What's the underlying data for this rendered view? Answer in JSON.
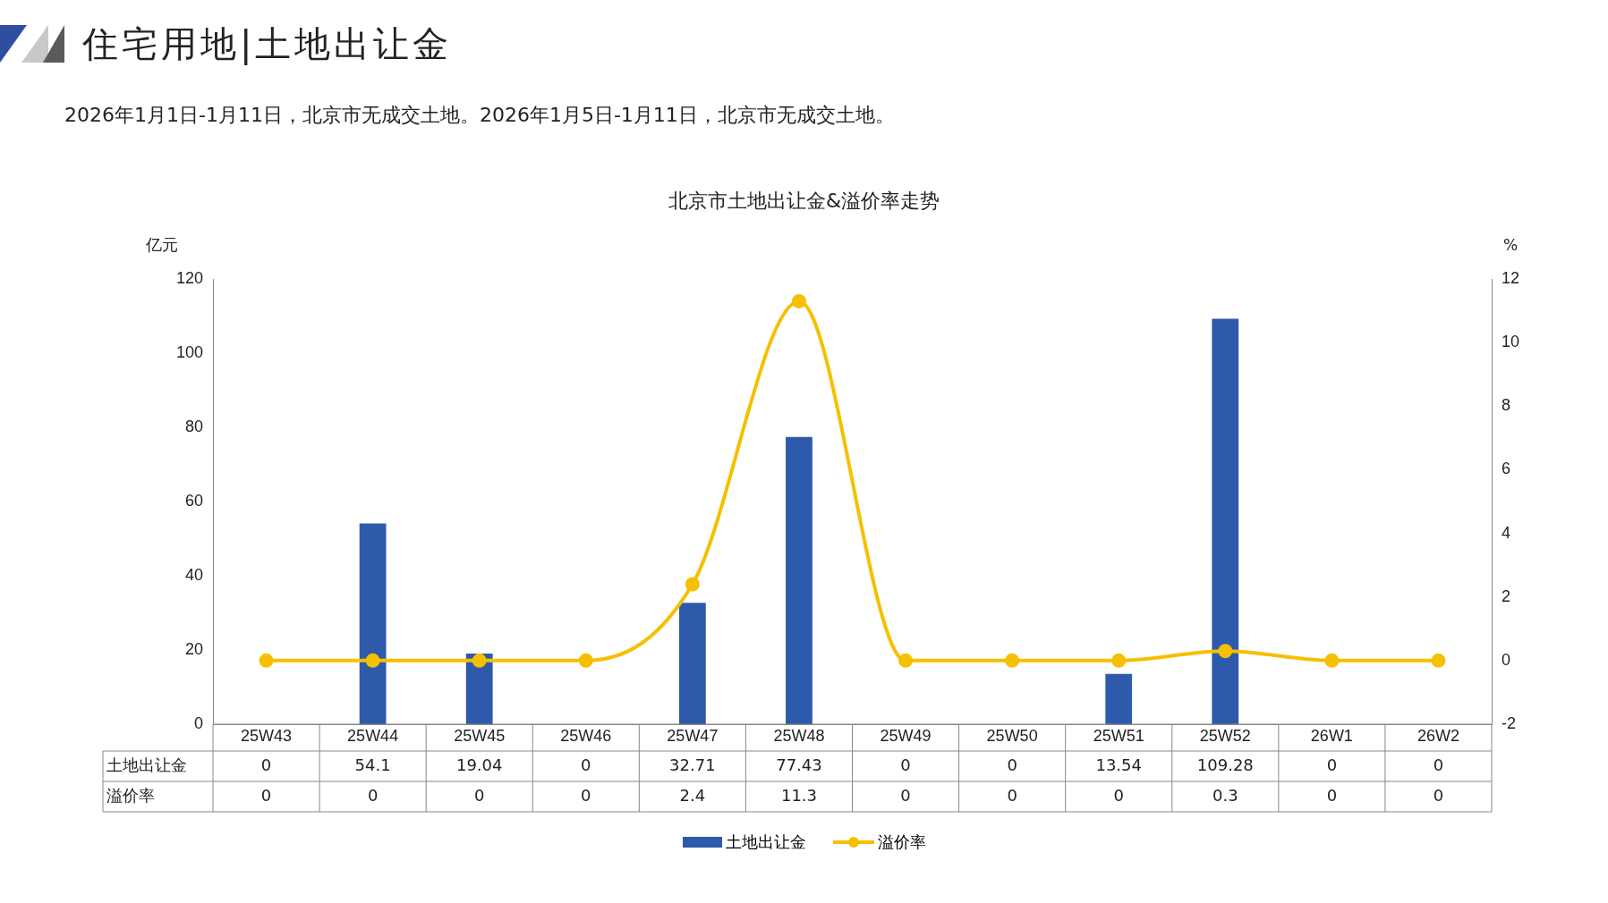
{
  "chart_data": {
    "type": "bar",
    "title": "北京市土地出让金&溢价率走势",
    "subtitle": "2026年1月1日-1月11日，北京市无成交土地。2026年1月5日-1月11日，北京市无成交土地。",
    "annotations": [
      "住宅用地|土地出让金"
    ],
    "ylabel": "亿元",
    "y2label": "%",
    "categories": [
      "25W43",
      "25W44",
      "25W45",
      "25W46",
      "25W47",
      "25W48",
      "25W49",
      "25W50",
      "25W51",
      "25W52",
      "26W1",
      "26W2"
    ],
    "series": [
      {
        "name": "土地出让金",
        "color": "#2e5aac",
        "values": [
          0,
          54.1,
          19.04,
          0,
          32.71,
          77.43,
          0,
          0,
          13.54,
          109.28,
          0,
          0
        ]
      },
      {
        "name": "溢价率",
        "type": "line",
        "axis": "y2",
        "color": "#f5c000",
        "values": [
          0,
          0,
          0,
          0,
          2.4,
          11.3,
          0,
          0,
          0,
          0.3,
          0,
          0
        ]
      }
    ],
    "ylim": [
      0,
      120
    ],
    "yticks": [
      0,
      20,
      40,
      60,
      80,
      100,
      120
    ],
    "y2lim": [
      -2,
      12
    ],
    "y2ticks": [
      -2,
      0,
      2,
      4,
      6,
      8,
      10,
      12
    ],
    "marker": "circle",
    "line_style": "solid",
    "grid": false,
    "legend": "bottom",
    "data_labels": true
  }
}
